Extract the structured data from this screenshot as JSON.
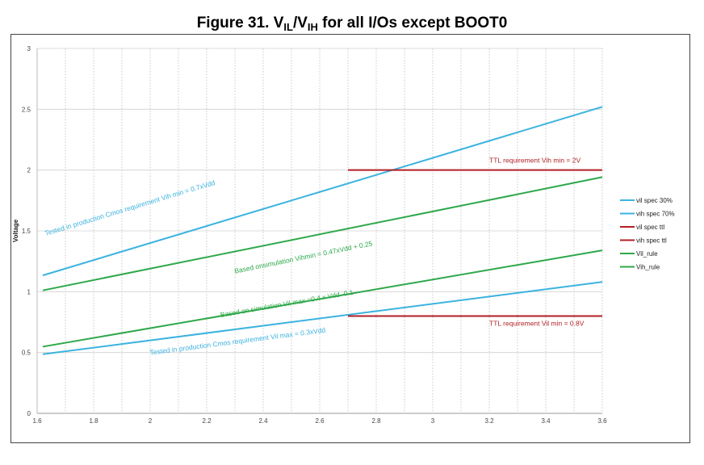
{
  "chart_data": {
    "type": "line",
    "title_main": "Figure 31. V",
    "title_sub1": "IL",
    "title_sep": "/V",
    "title_sub2": "IH",
    "title_end": " for all I/Os except BOOT0",
    "ylabel": "Voltage",
    "xlabel": "",
    "xlim": [
      1.6,
      3.6
    ],
    "ylim": [
      0,
      3
    ],
    "xticks": [
      "1.6",
      "1.8",
      "2",
      "2.2",
      "2.4",
      "2.6",
      "2.8",
      "3",
      "3.2",
      "3.4",
      "3.6"
    ],
    "xtick_values": [
      1.6,
      1.8,
      2.0,
      2.2,
      2.4,
      2.6,
      2.8,
      3.0,
      3.2,
      3.4,
      3.6
    ],
    "yticks": [
      "0",
      "0.5",
      "1",
      "1.5",
      "2",
      "2.5",
      "3"
    ],
    "ytick_values": [
      0,
      0.5,
      1,
      1.5,
      2,
      2.5,
      3
    ],
    "series": [
      {
        "name": "vil spec 30%",
        "color": "#3bb3e0",
        "points": [
          [
            1.62,
            0.486
          ],
          [
            3.6,
            1.08
          ]
        ]
      },
      {
        "name": "vih spec 70%",
        "color": "#3bb3e0",
        "points": [
          [
            1.62,
            1.134
          ],
          [
            3.6,
            2.52
          ]
        ]
      },
      {
        "name": "vil spec ttl",
        "color": "#b21f24",
        "points": [
          [
            2.7,
            0.8
          ],
          [
            3.6,
            0.8
          ]
        ]
      },
      {
        "name": "vih spec ttl",
        "color": "#b21f24",
        "points": [
          [
            2.7,
            2.0
          ],
          [
            3.6,
            2.0
          ]
        ]
      },
      {
        "name": "Vil_rule",
        "color": "#2ea84a",
        "points": [
          [
            1.62,
            0.548
          ],
          [
            3.6,
            1.34
          ]
        ]
      },
      {
        "name": "Vih_rule",
        "color": "#2ea84a",
        "points": [
          [
            1.62,
            1.011
          ],
          [
            3.6,
            1.942
          ]
        ]
      }
    ],
    "annotations": [
      {
        "id": "ann-vih-cmos",
        "text": "Tested in production Cmos requirement Vih min = 0.7xVdd",
        "color": "#3bb3e0",
        "x": 1.63,
        "y": 1.46,
        "angle_from": [
          1.62,
          1.134
        ],
        "angle_to": [
          3.6,
          2.52
        ]
      },
      {
        "id": "ann-vih-sim",
        "text": "Based onsimulation Vihmin = 0.47xVdd + 0.25",
        "color": "#2ea84a",
        "x": 2.3,
        "y": 1.15,
        "angle_from": [
          1.62,
          1.011
        ],
        "angle_to": [
          3.6,
          1.942
        ]
      },
      {
        "id": "ann-vil-sim",
        "text": "Based on simulation Vil max =0.4 x Vdd -0.1",
        "color": "#2ea84a",
        "x": 2.25,
        "y": 0.79,
        "angle_from": [
          1.62,
          0.548
        ],
        "angle_to": [
          3.6,
          1.34
        ]
      },
      {
        "id": "ann-vil-cmos",
        "text": "Tested in production Cmos requirement Vil max = 0.3xVdd",
        "color": "#3bb3e0",
        "x": 2.0,
        "y": 0.48,
        "angle_from": [
          1.62,
          0.486
        ],
        "angle_to": [
          3.6,
          1.08
        ]
      },
      {
        "id": "ann-ttl-vih",
        "text": "TTL requirement Vih min = 2V",
        "color": "#b21f24",
        "x": 3.2,
        "y": 2.06,
        "angle_from": [
          0,
          0
        ],
        "angle_to": [
          1,
          0
        ]
      },
      {
        "id": "ann-ttl-vil",
        "text": "TTL requirement Vil min = 0.8V",
        "color": "#b21f24",
        "x": 3.2,
        "y": 0.72,
        "angle_from": [
          0,
          0
        ],
        "angle_to": [
          1,
          0
        ]
      }
    ],
    "legend_position": "right",
    "grid": true
  }
}
